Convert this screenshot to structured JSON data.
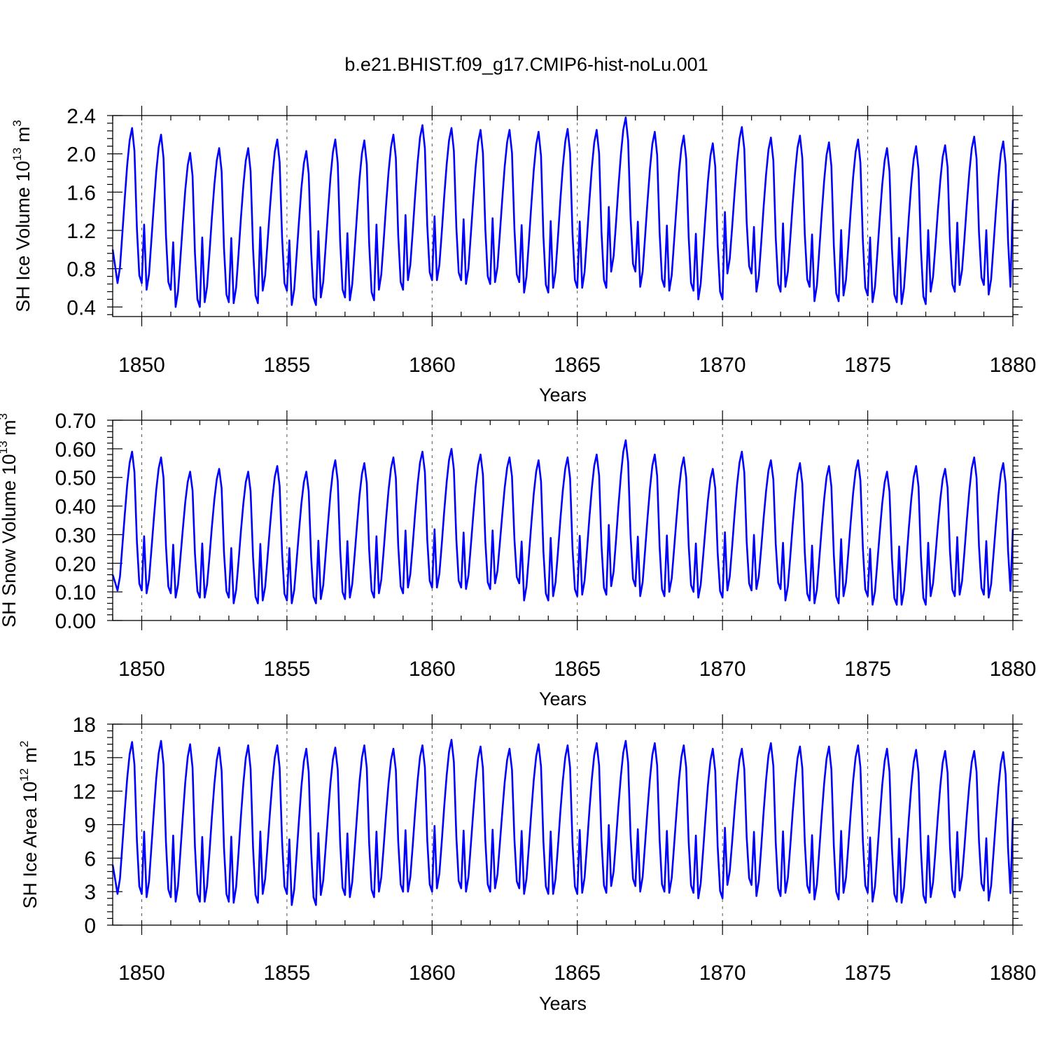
{
  "title": "b.e21.BHIST.f09_g17.CMIP6-hist-noLu.001",
  "chart_data": [
    {
      "type": "line",
      "ylabel_main": "SH Ice Volume 10",
      "ylabel_exp": "13",
      "ylabel_unit": " m",
      "ylabel_unit_exp": "3",
      "xlabel": "Years",
      "xlim": [
        1849,
        1880
      ],
      "ylim": [
        0.3,
        2.4
      ],
      "yticks": [
        "0.4",
        "0.8",
        "1.2",
        "1.6",
        "2.0",
        "2.4"
      ],
      "xticks": [
        "1850",
        "1855",
        "1860",
        "1865",
        "1870",
        "1875",
        "1880"
      ],
      "grid_x": true,
      "series_color": "#0000ff",
      "annual_max": [
        2.27,
        2.2,
        2.01,
        2.06,
        2.06,
        2.15,
        2.03,
        2.15,
        2.14,
        2.2,
        2.3,
        2.27,
        2.25,
        2.25,
        2.23,
        2.26,
        2.25,
        2.38,
        2.23,
        2.19,
        2.11,
        2.28,
        2.17,
        2.19,
        2.12,
        2.15,
        2.06,
        2.08,
        2.09,
        2.18,
        2.13
      ],
      "annual_min": [
        0.65,
        0.58,
        0.4,
        0.45,
        0.44,
        0.57,
        0.42,
        0.5,
        0.47,
        0.58,
        0.68,
        0.68,
        0.64,
        0.66,
        0.55,
        0.6,
        0.6,
        0.77,
        0.61,
        0.57,
        0.48,
        0.75,
        0.56,
        0.61,
        0.46,
        0.52,
        0.45,
        0.43,
        0.56,
        0.63,
        0.53
      ],
      "start_value": 1.0,
      "end_value": 1.52
    },
    {
      "type": "line",
      "ylabel_main": "SH Snow Volume 10",
      "ylabel_exp": "13",
      "ylabel_unit": " m",
      "ylabel_unit_exp": "3",
      "xlabel": "Years",
      "xlim": [
        1849,
        1880
      ],
      "ylim": [
        0.0,
        0.7
      ],
      "yticks": [
        "0.00",
        "0.10",
        "0.20",
        "0.30",
        "0.40",
        "0.50",
        "0.60",
        "0.70"
      ],
      "xticks": [
        "1850",
        "1855",
        "1860",
        "1865",
        "1870",
        "1875",
        "1880"
      ],
      "grid_x": true,
      "series_color": "#0000ff",
      "annual_max": [
        0.59,
        0.57,
        0.52,
        0.53,
        0.52,
        0.54,
        0.52,
        0.56,
        0.55,
        0.57,
        0.59,
        0.6,
        0.58,
        0.57,
        0.56,
        0.57,
        0.58,
        0.63,
        0.58,
        0.57,
        0.53,
        0.59,
        0.56,
        0.55,
        0.54,
        0.56,
        0.52,
        0.54,
        0.53,
        0.57,
        0.55
      ],
      "annual_min": [
        0.105,
        0.095,
        0.08,
        0.08,
        0.06,
        0.07,
        0.06,
        0.075,
        0.08,
        0.095,
        0.115,
        0.115,
        0.11,
        0.13,
        0.07,
        0.085,
        0.09,
        0.12,
        0.085,
        0.1,
        0.08,
        0.105,
        0.11,
        0.07,
        0.06,
        0.085,
        0.055,
        0.055,
        0.085,
        0.09,
        0.08
      ],
      "start_value": 0.16,
      "end_value": 0.32
    },
    {
      "type": "line",
      "ylabel_main": "SH Ice Area 10",
      "ylabel_exp": "12",
      "ylabel_unit": " m",
      "ylabel_unit_exp": "2",
      "xlabel": "Years",
      "xlim": [
        1849,
        1880
      ],
      "ylim": [
        0,
        18
      ],
      "yticks": [
        "0",
        "3",
        "6",
        "9",
        "12",
        "15",
        "18"
      ],
      "xticks": [
        "1850",
        "1855",
        "1860",
        "1865",
        "1870",
        "1875",
        "1880"
      ],
      "grid_x": true,
      "series_color": "#0000ff",
      "annual_max": [
        16.4,
        16.5,
        16.2,
        15.9,
        16.1,
        16.1,
        15.8,
        15.9,
        16.1,
        15.8,
        16.1,
        16.6,
        16.0,
        15.8,
        16.2,
        16.1,
        16.3,
        16.5,
        16.3,
        16.1,
        15.8,
        15.8,
        16.3,
        16.0,
        16.0,
        16.1,
        15.8,
        15.7,
        15.6,
        15.6,
        15.5
      ],
      "annual_min": [
        2.8,
        2.5,
        2.1,
        2.1,
        2.0,
        2.8,
        1.8,
        2.7,
        2.5,
        3.0,
        3.0,
        3.3,
        3.0,
        3.3,
        2.8,
        2.8,
        2.9,
        3.5,
        3.0,
        2.9,
        2.4,
        3.6,
        2.6,
        2.9,
        2.3,
        2.9,
        2.1,
        2.0,
        2.5,
        3.1,
        2.2
      ],
      "start_value": 5.4,
      "end_value": 9.6
    }
  ]
}
